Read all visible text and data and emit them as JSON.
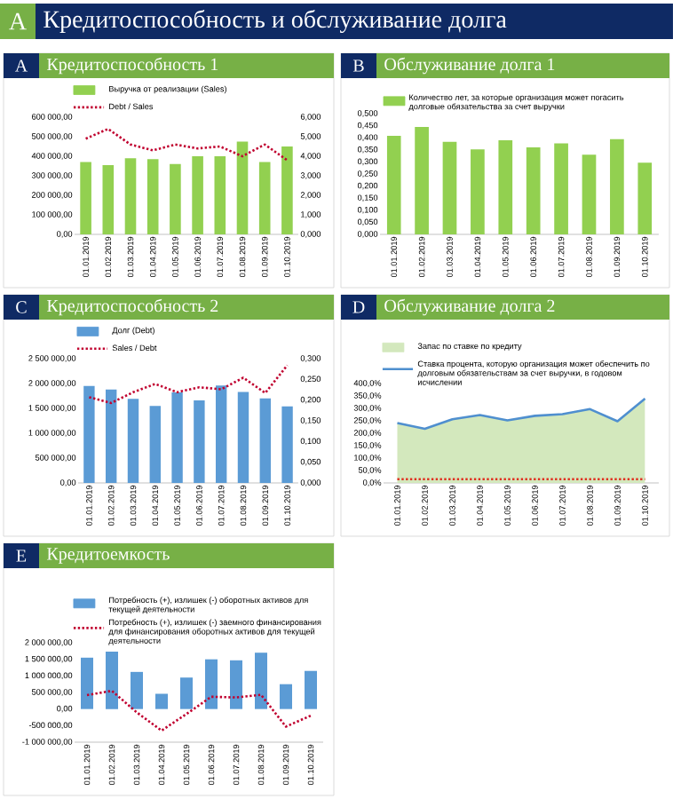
{
  "chart_data": [
    {
      "type": "other",
      "title": "Кредитоспособность и обслуживание долга",
      "annotations": [
        "A"
      ]
    },
    {
      "type": "bar",
      "title": "Кредитоспособность 1",
      "annotations": [
        "A"
      ],
      "legend": "top",
      "categories": [
        "01.01.2019",
        "01.02.2019",
        "01.03.2019",
        "01.04.2019",
        "01.05.2019",
        "01.06.2019",
        "01.07.2019",
        "01.08.2019",
        "01.09.2019",
        "01.10.2019"
      ],
      "series": [
        {
          "name": "Выручка от реализации (Sales)",
          "color": "#92d050",
          "values": [
            370000,
            355000,
            390000,
            385000,
            360000,
            400000,
            400000,
            475000,
            370000,
            450000
          ]
        },
        {
          "name": "Debt / Sales",
          "type": "line",
          "axis": "y2",
          "line_style": "dotted",
          "color": "#c0002f",
          "values": [
            4.9,
            5.4,
            4.6,
            4.3,
            4.6,
            4.4,
            4.5,
            4.0,
            4.6,
            3.8
          ]
        }
      ],
      "ylim": [
        0,
        600000
      ],
      "yticks": [
        {
          "value": 0,
          "label": "0,00"
        },
        {
          "value": 100000,
          "label": "100 000,00"
        },
        {
          "value": 200000,
          "label": "200 000,00"
        },
        {
          "value": 300000,
          "label": "300 000,00"
        },
        {
          "value": 400000,
          "label": "400 000,00"
        },
        {
          "value": 500000,
          "label": "500 000,00"
        },
        {
          "value": 600000,
          "label": "600 000,00"
        }
      ],
      "y2lim": [
        0,
        6
      ],
      "y2ticks": [
        {
          "value": 0,
          "label": "0,000"
        },
        {
          "value": 1,
          "label": "1,000"
        },
        {
          "value": 2,
          "label": "2,000"
        },
        {
          "value": 3,
          "label": "3,000"
        },
        {
          "value": 4,
          "label": "4,000"
        },
        {
          "value": 5,
          "label": "5,000"
        },
        {
          "value": 6,
          "label": "6,000"
        }
      ]
    },
    {
      "type": "bar",
      "title": "Обслуживание долга 1",
      "annotations": [
        "B"
      ],
      "legend": "top",
      "categories": [
        "01.01.2019",
        "01.02.2019",
        "01.03.2019",
        "01.04.2019",
        "01.05.2019",
        "01.06.2019",
        "01.07.2019",
        "01.08.2019",
        "01.09.2019",
        "01.10.2019"
      ],
      "series": [
        {
          "name": "Количество лет, за которые организация может погасить долговые обязательства за счет выручки",
          "color": "#92d050",
          "values": [
            0.408,
            0.445,
            0.383,
            0.352,
            0.39,
            0.36,
            0.377,
            0.33,
            0.394,
            0.297
          ]
        }
      ],
      "ylim": [
        0,
        0.5
      ],
      "yticks": [
        {
          "value": 0,
          "label": "0,000"
        },
        {
          "value": 0.05,
          "label": "0,050"
        },
        {
          "value": 0.1,
          "label": "0,100"
        },
        {
          "value": 0.15,
          "label": "0,150"
        },
        {
          "value": 0.2,
          "label": "0,200"
        },
        {
          "value": 0.25,
          "label": "0,250"
        },
        {
          "value": 0.3,
          "label": "0,300"
        },
        {
          "value": 0.35,
          "label": "0,350"
        },
        {
          "value": 0.4,
          "label": "0,400"
        },
        {
          "value": 0.45,
          "label": "0,450"
        },
        {
          "value": 0.5,
          "label": "0,500"
        }
      ]
    },
    {
      "type": "bar",
      "title": "Кредитоспособность 2",
      "annotations": [
        "C"
      ],
      "legend": "top",
      "categories": [
        "01.01.2019",
        "01.02.2019",
        "01.03.2019",
        "01.04.2019",
        "01.05.2019",
        "01.06.2019",
        "01.07.2019",
        "01.08.2019",
        "01.09.2019",
        "01.10.2019"
      ],
      "series": [
        {
          "name": "Долг (Debt)",
          "color": "#5b9bd5",
          "values": [
            1950000,
            1880000,
            1690000,
            1550000,
            1820000,
            1660000,
            1960000,
            1830000,
            1700000,
            1540000
          ]
        },
        {
          "name": "Sales / Debt",
          "type": "line",
          "axis": "y2",
          "line_style": "dotted",
          "color": "#c0002f",
          "values": [
            0.207,
            0.193,
            0.219,
            0.239,
            0.219,
            0.231,
            0.226,
            0.254,
            0.217,
            0.284
          ]
        }
      ],
      "ylim": [
        0,
        2500000
      ],
      "yticks": [
        {
          "value": 0,
          "label": "0,00"
        },
        {
          "value": 500000,
          "label": "500 000,00"
        },
        {
          "value": 1000000,
          "label": "1 000 000,00"
        },
        {
          "value": 1500000,
          "label": "1 500 000,00"
        },
        {
          "value": 2000000,
          "label": "2 000 000,00"
        },
        {
          "value": 2500000,
          "label": "2 500 000,00"
        }
      ],
      "y2lim": [
        0,
        0.3
      ],
      "y2ticks": [
        {
          "value": 0,
          "label": "0,000"
        },
        {
          "value": 0.05,
          "label": "0,050"
        },
        {
          "value": 0.1,
          "label": "0,100"
        },
        {
          "value": 0.15,
          "label": "0,150"
        },
        {
          "value": 0.2,
          "label": "0,200"
        },
        {
          "value": 0.25,
          "label": "0,250"
        },
        {
          "value": 0.3,
          "label": "0,300"
        }
      ]
    },
    {
      "type": "area",
      "title": "Обслуживание долга 2",
      "annotations": [
        "D"
      ],
      "legend": "top",
      "categories": [
        "01.01.2019",
        "01.02.2019",
        "01.03.2019",
        "01.04.2019",
        "01.05.2019",
        "01.06.2019",
        "01.07.2019",
        "01.08.2019",
        "01.09.2019",
        "01.10.2019"
      ],
      "series": [
        {
          "name": "Запас по ставке по кредиту",
          "color": "#d3e8bd",
          "values": [
            241,
            218,
            256,
            273,
            252,
            270,
            277,
            297,
            248,
            339
          ]
        },
        {
          "name": "Ставка процента, которую организация может обеспечить по долговым обязательствам за счет выручки, в годовом исчислении",
          "type": "line",
          "line_style": "solid",
          "color": "#4f8fcf",
          "values": [
            241,
            218,
            256,
            273,
            252,
            270,
            277,
            297,
            248,
            339
          ]
        },
        {
          "type": "line",
          "line_style": "dotted",
          "color": "#e03020",
          "values": [
            15,
            15,
            15,
            15,
            15,
            15,
            15,
            15,
            15,
            15
          ]
        }
      ],
      "ylim": [
        0,
        400
      ],
      "yticks": [
        {
          "value": 0,
          "label": "0,0%"
        },
        {
          "value": 50,
          "label": "50,0%"
        },
        {
          "value": 100,
          "label": "100,0%"
        },
        {
          "value": 150,
          "label": "150,0%"
        },
        {
          "value": 200,
          "label": "200,0%"
        },
        {
          "value": 250,
          "label": "250,0%"
        },
        {
          "value": 300,
          "label": "300,0%"
        },
        {
          "value": 350,
          "label": "350,0%"
        },
        {
          "value": 400,
          "label": "400,0%"
        }
      ]
    },
    {
      "type": "bar",
      "title": "Кредитоемкость",
      "annotations": [
        "E"
      ],
      "legend": "top",
      "categories": [
        "01.01.2019",
        "01.02.2019",
        "01.03.2019",
        "01.04.2019",
        "01.05.2019",
        "01.06.2019",
        "01.07.2019",
        "01.08.2019",
        "01.09.2019",
        "01.10.2019"
      ],
      "series": [
        {
          "name": "Потребность (+), излишек (-) оборотных активов для текущей деятельности",
          "color": "#5b9bd5",
          "values": [
            1550000,
            1730000,
            1120000,
            460000,
            950000,
            1500000,
            1470000,
            1700000,
            750000,
            1150000
          ]
        },
        {
          "name": "Потребность (+), излишек (-) заемного финансирования для финансирования оборотных активов для текущей деятельности",
          "type": "line",
          "line_style": "dotted",
          "color": "#c0002f",
          "values": [
            420000,
            550000,
            -100000,
            -650000,
            -150000,
            370000,
            350000,
            430000,
            -530000,
            -200000
          ]
        }
      ],
      "ylim": [
        -1000000,
        2000000
      ],
      "yticks": [
        {
          "value": -1000000,
          "label": "-1 000 000,00"
        },
        {
          "value": -500000,
          "label": "-500 000,00"
        },
        {
          "value": 0,
          "label": "0,00"
        },
        {
          "value": 500000,
          "label": "500 000,00"
        },
        {
          "value": 1000000,
          "label": "1 000 000,00"
        },
        {
          "value": 1500000,
          "label": "1 500 000,00"
        },
        {
          "value": 2000000,
          "label": "2 000 000,00"
        }
      ]
    }
  ]
}
